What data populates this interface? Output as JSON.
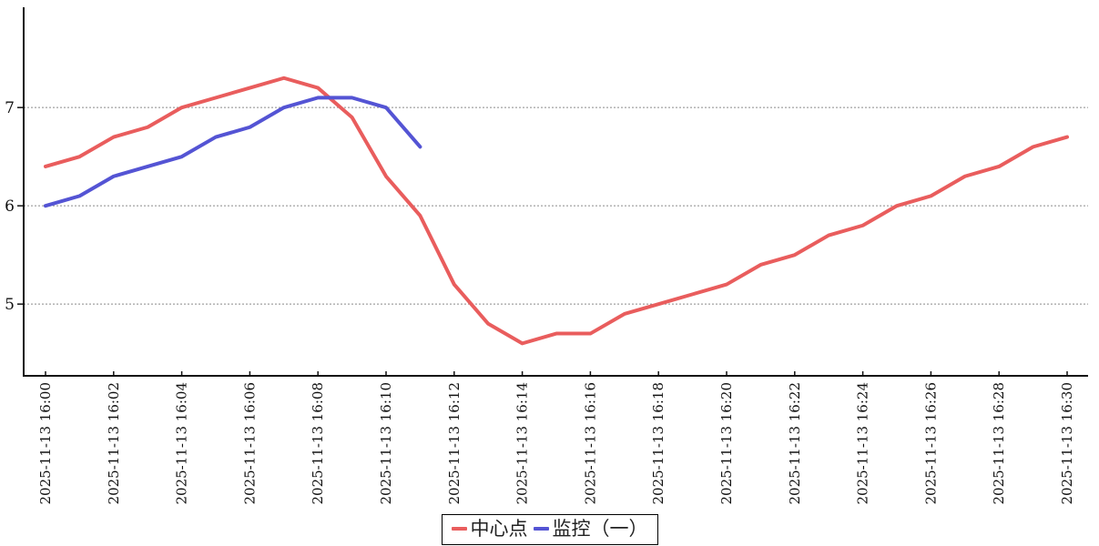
{
  "chart": {
    "background": "#ffffff",
    "axis_color": "#111111",
    "grid_color": "#8a8a8a",
    "text_color": "#111111"
  },
  "legend": {
    "items": [
      {
        "label": "中心点",
        "color": "#e95d5d"
      },
      {
        "label": "监控（一）",
        "color": "#5454d4"
      }
    ]
  },
  "chart_data": {
    "type": "line",
    "title": "",
    "xlabel": "",
    "ylabel": "",
    "grid": "horizontal-dashed",
    "legend_position": "bottom-center",
    "x_label_step": 2,
    "yticks": [
      5,
      6,
      7
    ],
    "ylim": [
      4.27,
      8.02
    ],
    "x": [
      "2025-11-13 16:00",
      "2025-11-13 16:01",
      "2025-11-13 16:02",
      "2025-11-13 16:03",
      "2025-11-13 16:04",
      "2025-11-13 16:05",
      "2025-11-13 16:06",
      "2025-11-13 16:07",
      "2025-11-13 16:08",
      "2025-11-13 16:09",
      "2025-11-13 16:10",
      "2025-11-13 16:11",
      "2025-11-13 16:12",
      "2025-11-13 16:13",
      "2025-11-13 16:14",
      "2025-11-13 16:15",
      "2025-11-13 16:16",
      "2025-11-13 16:17",
      "2025-11-13 16:18",
      "2025-11-13 16:19",
      "2025-11-13 16:20",
      "2025-11-13 16:21",
      "2025-11-13 16:22",
      "2025-11-13 16:23",
      "2025-11-13 16:24",
      "2025-11-13 16:25",
      "2025-11-13 16:26",
      "2025-11-13 16:27",
      "2025-11-13 16:28",
      "2025-11-13 16:29",
      "2025-11-13 16:30"
    ],
    "series": [
      {
        "name": "中心点",
        "color": "#e95d5d",
        "values": [
          6.4,
          6.5,
          6.7,
          6.8,
          7.0,
          7.1,
          7.2,
          7.3,
          7.2,
          6.9,
          6.3,
          5.9,
          5.2,
          4.8,
          4.6,
          4.7,
          4.7,
          4.9,
          5.0,
          5.1,
          5.2,
          5.4,
          5.5,
          5.7,
          5.8,
          6.0,
          6.1,
          6.3,
          6.4,
          6.6,
          6.7
        ]
      },
      {
        "name": "监控（一）",
        "color": "#5454d4",
        "values": [
          6.0,
          6.1,
          6.3,
          6.4,
          6.5,
          6.7,
          6.8,
          7.0,
          7.1,
          7.1,
          7.0,
          6.6
        ]
      }
    ]
  }
}
